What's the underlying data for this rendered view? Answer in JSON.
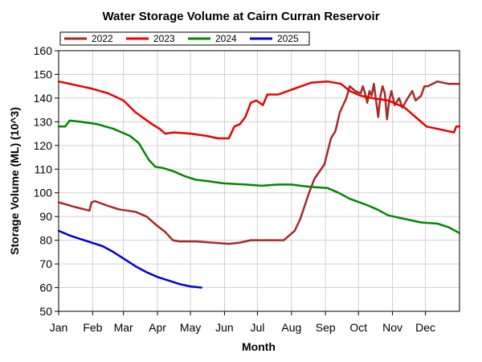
{
  "chart_data": {
    "type": "line",
    "title": "Water Storage Volume at Cairn Curran Reservoir",
    "xlabel": "Month",
    "ylabel": "Storage Volume (ML) (10^3)",
    "xlim": [
      0,
      365
    ],
    "ylim": [
      50,
      160
    ],
    "yticks": [
      50,
      60,
      70,
      80,
      90,
      100,
      110,
      120,
      130,
      140,
      150,
      160
    ],
    "xticks": [
      {
        "label": "Jan",
        "day": 0
      },
      {
        "label": "Feb",
        "day": 31
      },
      {
        "label": "Mar",
        "day": 59
      },
      {
        "label": "Apr",
        "day": 90
      },
      {
        "label": "May",
        "day": 120
      },
      {
        "label": "Jun",
        "day": 151
      },
      {
        "label": "Jul",
        "day": 181
      },
      {
        "label": "Aug",
        "day": 212
      },
      {
        "label": "Sep",
        "day": 243
      },
      {
        "label": "Oct",
        "day": 273
      },
      {
        "label": "Nov",
        "day": 304
      },
      {
        "label": "Dec",
        "day": 334
      }
    ],
    "grid": true,
    "legend_position": "top-left",
    "series": [
      {
        "name": "2022",
        "color": "#a52a2a",
        "points": [
          [
            0,
            96
          ],
          [
            15,
            94
          ],
          [
            28,
            92.5
          ],
          [
            30,
            96
          ],
          [
            33,
            96.5
          ],
          [
            45,
            94.5
          ],
          [
            55,
            93
          ],
          [
            70,
            92
          ],
          [
            80,
            90
          ],
          [
            90,
            86
          ],
          [
            97,
            83.5
          ],
          [
            104,
            80
          ],
          [
            110,
            79.5
          ],
          [
            125,
            79.5
          ],
          [
            140,
            79
          ],
          [
            155,
            78.5
          ],
          [
            165,
            79
          ],
          [
            175,
            80
          ],
          [
            190,
            80
          ],
          [
            205,
            80
          ],
          [
            210,
            82
          ],
          [
            215,
            84
          ],
          [
            220,
            89
          ],
          [
            228,
            100
          ],
          [
            233,
            106
          ],
          [
            242,
            112
          ],
          [
            248,
            123
          ],
          [
            252,
            126
          ],
          [
            256,
            134
          ],
          [
            262,
            140
          ],
          [
            265,
            145
          ],
          [
            270,
            143
          ],
          [
            275,
            142
          ],
          [
            277,
            145
          ],
          [
            279,
            142
          ],
          [
            281,
            138
          ],
          [
            283,
            143
          ],
          [
            285,
            141
          ],
          [
            287,
            146
          ],
          [
            289,
            139
          ],
          [
            291,
            132
          ],
          [
            293,
            141
          ],
          [
            295,
            145
          ],
          [
            297,
            142
          ],
          [
            299,
            131
          ],
          [
            301,
            139
          ],
          [
            303,
            143
          ],
          [
            306,
            137
          ],
          [
            310,
            140
          ],
          [
            313,
            136
          ],
          [
            318,
            140
          ],
          [
            322,
            143
          ],
          [
            325,
            139
          ],
          [
            330,
            141
          ],
          [
            333,
            145
          ],
          [
            336,
            145
          ],
          [
            345,
            147
          ],
          [
            355,
            146
          ],
          [
            365,
            146
          ]
        ]
      },
      {
        "name": "2023",
        "color": "#ee0000",
        "points": [
          [
            0,
            147
          ],
          [
            10,
            146
          ],
          [
            30,
            144
          ],
          [
            45,
            142
          ],
          [
            59,
            139
          ],
          [
            70,
            134
          ],
          [
            85,
            129
          ],
          [
            92,
            127
          ],
          [
            97,
            125
          ],
          [
            105,
            125.5
          ],
          [
            120,
            125
          ],
          [
            135,
            124
          ],
          [
            145,
            123
          ],
          [
            155,
            123
          ],
          [
            160,
            128
          ],
          [
            165,
            129
          ],
          [
            170,
            132
          ],
          [
            175,
            138
          ],
          [
            180,
            139
          ],
          [
            186,
            137
          ],
          [
            190,
            141.5
          ],
          [
            200,
            141.5
          ],
          [
            215,
            144
          ],
          [
            230,
            146.5
          ],
          [
            245,
            147
          ],
          [
            257,
            146
          ],
          [
            265,
            143
          ],
          [
            275,
            141
          ],
          [
            285,
            140
          ],
          [
            300,
            139
          ],
          [
            315,
            136
          ],
          [
            325,
            132
          ],
          [
            335,
            128
          ],
          [
            345,
            127
          ],
          [
            360,
            125.5
          ],
          [
            362,
            128
          ],
          [
            365,
            128
          ]
        ]
      },
      {
        "name": "2024",
        "color": "#008800",
        "points": [
          [
            0,
            128
          ],
          [
            6,
            128
          ],
          [
            10,
            130.5
          ],
          [
            20,
            130
          ],
          [
            35,
            129
          ],
          [
            50,
            127
          ],
          [
            65,
            124
          ],
          [
            73,
            121
          ],
          [
            82,
            114
          ],
          [
            88,
            111
          ],
          [
            95,
            110.5
          ],
          [
            105,
            109
          ],
          [
            115,
            107
          ],
          [
            125,
            105.5
          ],
          [
            135,
            105
          ],
          [
            150,
            104
          ],
          [
            170,
            103.5
          ],
          [
            185,
            103
          ],
          [
            200,
            103.5
          ],
          [
            212,
            103.5
          ],
          [
            220,
            103
          ],
          [
            230,
            102.5
          ],
          [
            245,
            102
          ],
          [
            255,
            100
          ],
          [
            265,
            97.5
          ],
          [
            280,
            95
          ],
          [
            290,
            93
          ],
          [
            300,
            90.5
          ],
          [
            315,
            89
          ],
          [
            330,
            87.5
          ],
          [
            345,
            87
          ],
          [
            355,
            85.5
          ],
          [
            365,
            83
          ]
        ]
      },
      {
        "name": "2025",
        "color": "#0000dd",
        "points": [
          [
            0,
            84
          ],
          [
            10,
            82
          ],
          [
            20,
            80.5
          ],
          [
            30,
            79
          ],
          [
            40,
            77.5
          ],
          [
            50,
            75
          ],
          [
            60,
            72
          ],
          [
            70,
            69
          ],
          [
            80,
            66.5
          ],
          [
            90,
            64.5
          ],
          [
            100,
            63
          ],
          [
            110,
            61.5
          ],
          [
            120,
            60.5
          ],
          [
            130,
            60
          ]
        ]
      }
    ]
  }
}
